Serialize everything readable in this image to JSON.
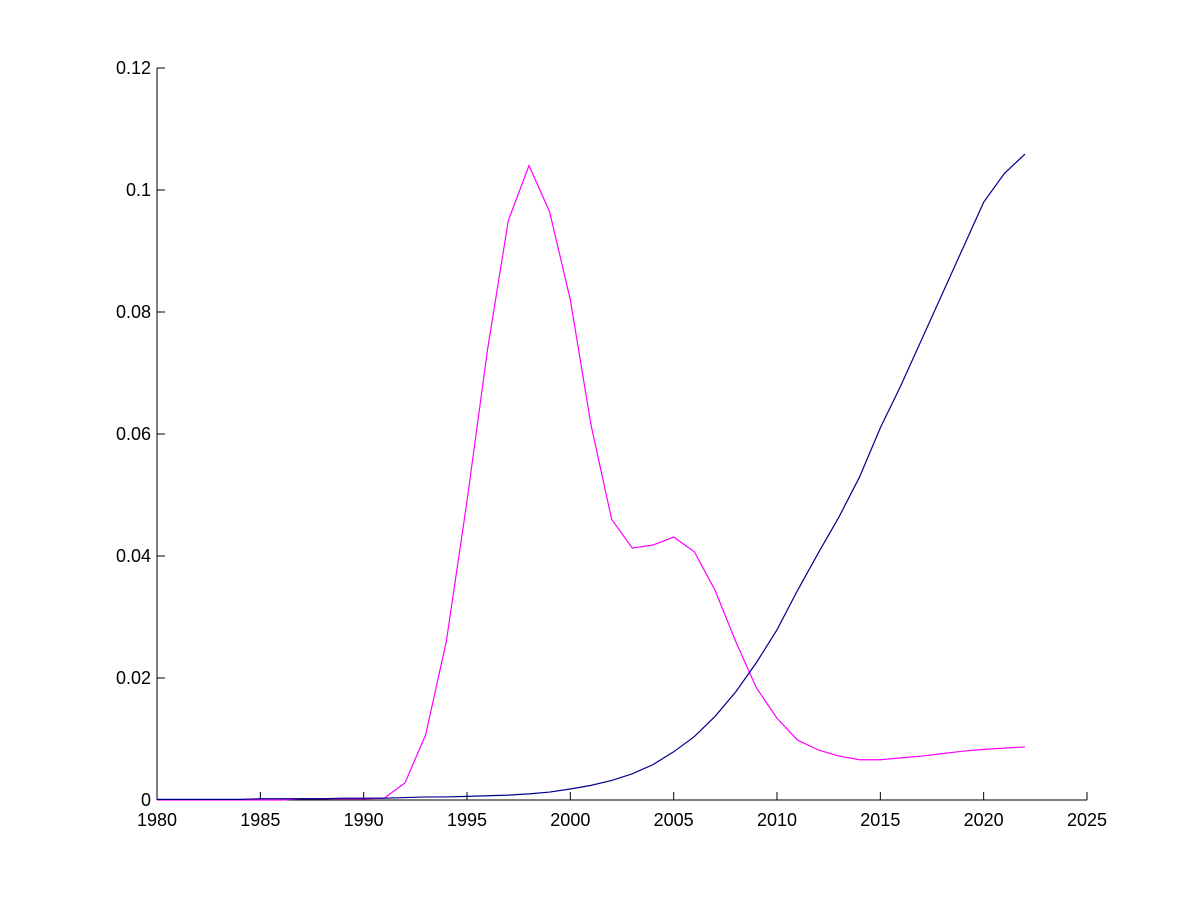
{
  "chart_data": {
    "type": "line",
    "x": [
      1980,
      1981,
      1982,
      1983,
      1984,
      1985,
      1986,
      1987,
      1988,
      1989,
      1990,
      1991,
      1992,
      1993,
      1994,
      1995,
      1996,
      1997,
      1998,
      1999,
      2000,
      2001,
      2002,
      2003,
      2004,
      2005,
      2006,
      2007,
      2008,
      2009,
      2010,
      2011,
      2012,
      2013,
      2014,
      2015,
      2016,
      2017,
      2018,
      2019,
      2020,
      2021,
      2022
    ],
    "series": [
      {
        "color": "#ff00ff",
        "values": [
          0,
          0,
          0,
          0,
          0,
          0,
          0,
          0.0002,
          0.0002,
          0.0002,
          0.0002,
          0.0003,
          0.0028,
          0.0107,
          0.026,
          0.049,
          0.074,
          0.095,
          0.104,
          0.0964,
          0.082,
          0.0615,
          0.046,
          0.0413,
          0.0418,
          0.0431,
          0.0407,
          0.0344,
          0.026,
          0.0184,
          0.0134,
          0.0098,
          0.0082,
          0.0072,
          0.0066,
          0.0066,
          0.0069,
          0.0072,
          0.0076,
          0.008,
          0.0083,
          0.0085,
          0.0087
        ]
      },
      {
        "color": "#00008b",
        "values": [
          0.0001,
          0.0001,
          0.0001,
          0.0001,
          0.0001,
          0.0002,
          0.0002,
          0.0002,
          0.0002,
          0.0003,
          0.0003,
          0.0003,
          0.0004,
          0.0005,
          0.0005,
          0.0006,
          0.0007,
          0.0008,
          0.001,
          0.0013,
          0.0018,
          0.0024,
          0.0032,
          0.0043,
          0.0058,
          0.0079,
          0.0104,
          0.0137,
          0.0177,
          0.0225,
          0.0279,
          0.0344,
          0.0405,
          0.0464,
          0.053,
          0.061,
          0.068,
          0.0755,
          0.083,
          0.0905,
          0.098,
          0.1027,
          0.1059
        ]
      }
    ],
    "xlim": [
      1980,
      2025
    ],
    "xticks": [
      1980,
      1985,
      1990,
      1995,
      2000,
      2005,
      2010,
      2015,
      2020,
      2025
    ],
    "ylim": [
      0,
      0.12
    ],
    "yticks": [
      0,
      0.02,
      0.04,
      0.06,
      0.08,
      0.1,
      0.12
    ],
    "grid": false
  }
}
